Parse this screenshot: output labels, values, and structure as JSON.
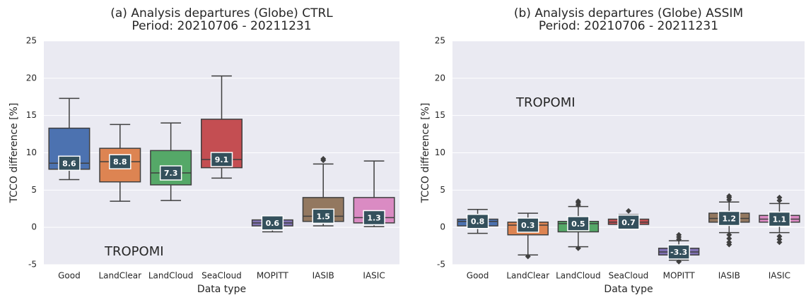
{
  "chart_data": [
    {
      "type": "box",
      "title": "(a) Analysis departures (Globe) CTRL",
      "subtitle": "Period: 20210706 - 20211231",
      "xlabel": "Data type",
      "ylabel": "TCCO difference [%]",
      "annotation": "TROPOMI",
      "categories": [
        "Good",
        "LandClear",
        "LandCloud",
        "SeaCloud",
        "MOPITT",
        "IASIB",
        "IASIC"
      ],
      "colors": [
        "#4c72b0",
        "#dd8452",
        "#55a868",
        "#c44e52",
        "#8172b3",
        "#937860",
        "#da8bc3"
      ],
      "whisker_low": [
        6.4,
        3.5,
        3.6,
        6.6,
        -0.6,
        0.2,
        0.1
      ],
      "q1": [
        7.8,
        6.1,
        5.7,
        8.0,
        0.2,
        0.8,
        0.6
      ],
      "median": [
        8.6,
        8.8,
        7.3,
        9.1,
        0.6,
        1.5,
        1.3
      ],
      "q3": [
        13.3,
        10.6,
        10.3,
        14.5,
        1.0,
        4.0,
        4.0
      ],
      "whisker_high": [
        17.3,
        13.8,
        14.0,
        20.3,
        1.5,
        8.5,
        8.9
      ],
      "outliers": [
        [],
        [],
        [],
        [],
        [],
        [
          9.0,
          9.2
        ],
        []
      ],
      "ylim": [
        -5,
        25
      ],
      "yticks": [
        -5,
        0,
        5,
        10,
        15,
        20,
        25
      ],
      "grid": true
    },
    {
      "type": "box",
      "title": "(b) Analysis departures (Globe) ASSIM",
      "subtitle": "Period: 20210706 - 20211231",
      "xlabel": "Data type",
      "ylabel": "TCCO difference [%]",
      "annotation": "TROPOMI",
      "categories": [
        "Good",
        "LandClear",
        "LandCloud",
        "SeaCloud",
        "MOPITT",
        "IASIB",
        "IASIC"
      ],
      "colors": [
        "#4c72b0",
        "#dd8452",
        "#55a868",
        "#c44e52",
        "#8172b3",
        "#937860",
        "#da8bc3"
      ],
      "whisker_low": [
        -0.8,
        -3.7,
        -2.6,
        0.1,
        -4.4,
        -0.7,
        -0.7
      ],
      "q1": [
        0.2,
        -1.0,
        -0.6,
        0.4,
        -3.7,
        0.7,
        0.7
      ],
      "median": [
        0.8,
        0.3,
        0.5,
        0.7,
        -3.3,
        1.2,
        1.1
      ],
      "q3": [
        1.1,
        0.7,
        0.8,
        1.1,
        -2.8,
        1.9,
        1.6
      ],
      "whisker_high": [
        2.4,
        1.9,
        2.8,
        1.7,
        -1.8,
        3.4,
        3.2
      ],
      "outliers": [
        [],
        [
          -3.9
        ],
        [
          3.0,
          3.3,
          3.5,
          -2.8
        ],
        [
          2.2
        ],
        [
          -1.6,
          -1.3,
          -1.0,
          -4.6
        ],
        [
          3.7,
          4.0,
          4.2,
          -1.0,
          -1.5,
          -2.0,
          -2.3
        ],
        [
          3.6,
          4.0,
          -1.2,
          -1.6,
          -2.0
        ]
      ],
      "ylim": [
        -5,
        25
      ],
      "yticks": [
        -5,
        0,
        5,
        10,
        15,
        20,
        25
      ],
      "grid": true
    }
  ]
}
